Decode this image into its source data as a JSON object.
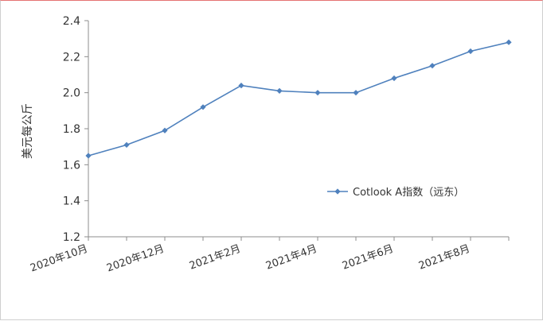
{
  "chart_data": {
    "type": "line",
    "title": "",
    "xlabel": "",
    "ylabel": "美元每公斤",
    "ylim": [
      1.2,
      2.4
    ],
    "yticks": [
      "1.2",
      "1.4",
      "1.6",
      "1.8",
      "2.0",
      "2.2",
      "2.4"
    ],
    "xtick_labels": [
      "2020年10月",
      "2020年12月",
      "2021年2月",
      "2021年4月",
      "2021年6月",
      "2021年8月"
    ],
    "grid": false,
    "legend_position": "right",
    "series": [
      {
        "name": "Cotlook A指数（远东）",
        "color": "#4f81bd",
        "values": [
          1.65,
          1.71,
          1.79,
          1.92,
          2.04,
          2.01,
          2.0,
          2.0,
          2.08,
          2.15,
          2.23,
          2.28
        ]
      }
    ]
  }
}
